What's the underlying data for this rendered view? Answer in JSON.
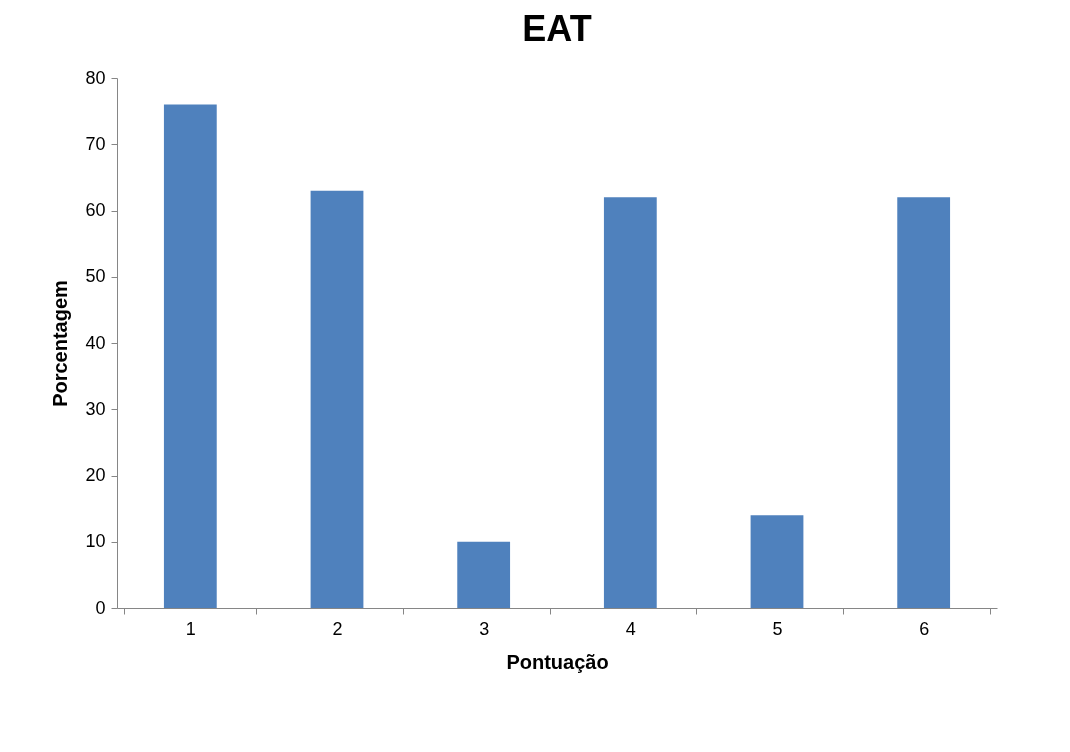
{
  "chart_data": {
    "type": "bar",
    "title": "EAT",
    "xlabel": "Pontuação",
    "ylabel": "Porcentagem",
    "categories": [
      "1",
      "2",
      "3",
      "4",
      "5",
      "6"
    ],
    "values": [
      76,
      63,
      10,
      62,
      14,
      62
    ],
    "color": "#4f81bd",
    "ylim": [
      0,
      80
    ],
    "yticks": [
      0,
      10,
      20,
      30,
      40,
      50,
      60,
      70,
      80
    ],
    "grid": false
  }
}
